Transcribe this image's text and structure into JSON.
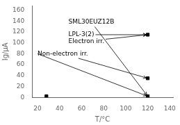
{
  "chart_data": {
    "type": "scatter",
    "xlabel": "T/°C",
    "ylabel": "Ig/μA",
    "x": [
      28,
      120,
      120,
      120
    ],
    "values": [
      2,
      2,
      35,
      115
    ],
    "color": "#000000",
    "marker": "square",
    "xlim": [
      15,
      143
    ],
    "ylim": [
      0,
      168
    ],
    "xticks": [
      20,
      40,
      60,
      80,
      100,
      120,
      140
    ],
    "yticks": [
      0,
      20,
      40,
      60,
      80,
      100,
      120,
      140,
      160
    ],
    "grid": false,
    "annotations": [
      {
        "text": "SML30EUZ12B",
        "xy": [
          120,
          2
        ],
        "xytext": [
          48,
          138
        ]
      },
      {
        "text": "LPL-3(2)",
        "xy": [
          120,
          115
        ],
        "xytext": [
          48,
          115
        ]
      },
      {
        "text": "Electron irr.",
        "xy": [
          120,
          115
        ],
        "xytext": [
          48,
          103
        ]
      },
      {
        "text": "Non-electron irr.",
        "xy": [
          120,
          35
        ],
        "xytext": [
          20,
          80
        ]
      }
    ],
    "arrows": [
      {
        "xy": [
          120,
          2
        ],
        "xytext": [
          20,
          80
        ]
      }
    ]
  }
}
